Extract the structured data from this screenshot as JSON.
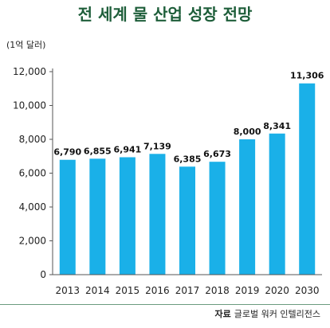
{
  "title": "전 세계 물 산업 성장 전망",
  "unit_label": "(1억 달러)",
  "source": {
    "key": "자료",
    "text": "글로벌 워커 인텔리전스"
  },
  "colors": {
    "bar": "#1ab0e8",
    "title": "#1e5e3a",
    "axis": "#555555"
  },
  "chart_data": {
    "type": "bar",
    "categories": [
      "2013",
      "2014",
      "2015",
      "2016",
      "2017",
      "2018",
      "2019",
      "2020",
      "2030"
    ],
    "values": [
      6790,
      6855,
      6941,
      7139,
      6385,
      6673,
      8000,
      8341,
      11306
    ],
    "value_labels": [
      "6,790",
      "6,855",
      "6,941",
      "7,139",
      "6,385",
      "6,673",
      "8,000",
      "8,341",
      "11,306"
    ],
    "yticks": [
      0,
      2000,
      4000,
      6000,
      8000,
      10000,
      12000
    ],
    "ytick_labels": [
      "0",
      "2,000",
      "4,000",
      "6,000",
      "8,000",
      "10,000",
      "12,000"
    ],
    "ylim": [
      0,
      12000
    ],
    "grid": false,
    "legend": "none"
  }
}
